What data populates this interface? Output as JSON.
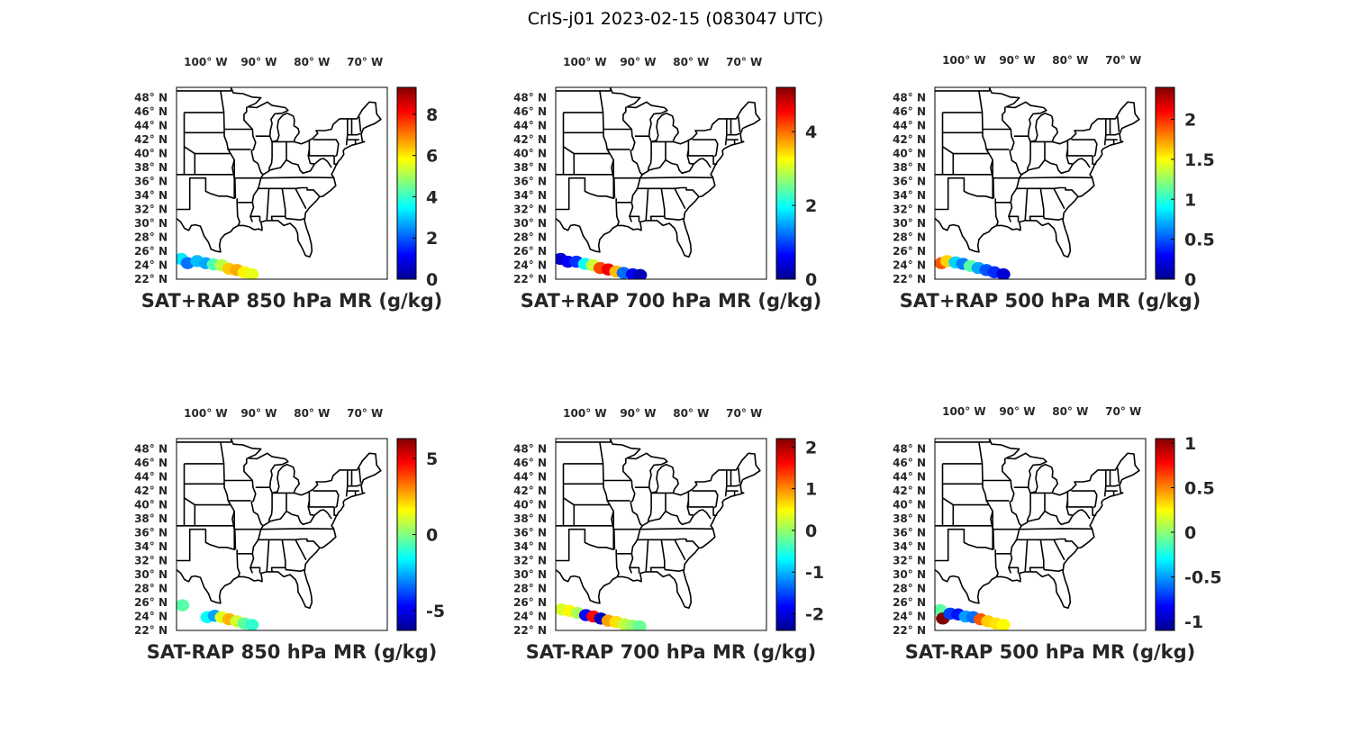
{
  "figure": {
    "title": "CrIS-j01 2023-02-15 (083047 UTC)"
  },
  "map_axes": {
    "lon_ticks": [
      {
        "value": -100,
        "label": "100",
        "suffix": "W"
      },
      {
        "value": -90,
        "label": "90",
        "suffix": "W"
      },
      {
        "value": -80,
        "label": "80",
        "suffix": "W"
      },
      {
        "value": -70,
        "label": "70",
        "suffix": "W"
      }
    ],
    "lat_ticks": [
      {
        "value": 48,
        "label": "48",
        "suffix": "N"
      },
      {
        "value": 46,
        "label": "46",
        "suffix": "N"
      },
      {
        "value": 44,
        "label": "44",
        "suffix": "N"
      },
      {
        "value": 42,
        "label": "42",
        "suffix": "N"
      },
      {
        "value": 40,
        "label": "40",
        "suffix": "N"
      },
      {
        "value": 38,
        "label": "38",
        "suffix": "N"
      },
      {
        "value": 36,
        "label": "36",
        "suffix": "N"
      },
      {
        "value": 34,
        "label": "34",
        "suffix": "N"
      },
      {
        "value": 32,
        "label": "32",
        "suffix": "N"
      },
      {
        "value": 30,
        "label": "30",
        "suffix": "N"
      },
      {
        "value": 28,
        "label": "28",
        "suffix": "N"
      },
      {
        "value": 26,
        "label": "26",
        "suffix": "N"
      },
      {
        "value": 24,
        "label": "24",
        "suffix": "N"
      },
      {
        "value": 22,
        "label": "22",
        "suffix": "N"
      }
    ],
    "degree_symbol": "°",
    "colormap": "jet"
  },
  "panels": [
    {
      "id": "sat-rap-sum-850",
      "title": "SAT+RAP 850 hPa MR (g/kg)",
      "clim": [
        0,
        9.3
      ],
      "cbar_ticks": [
        {
          "value": 0,
          "label": "0"
        },
        {
          "value": 2,
          "label": "2"
        },
        {
          "value": 4,
          "label": "4"
        },
        {
          "value": 6,
          "label": "6"
        },
        {
          "value": 8,
          "label": "8"
        }
      ],
      "swath": [
        {
          "lon": -104.6,
          "lat": 24.9,
          "value": 3.3
        },
        {
          "lon": -103.4,
          "lat": 24.3,
          "value": 2.2
        },
        {
          "lon": -101.6,
          "lat": 24.6,
          "value": 2.9
        },
        {
          "lon": -100.0,
          "lat": 24.3,
          "value": 2.7
        },
        {
          "lon": -98.5,
          "lat": 24.1,
          "value": 4.2
        },
        {
          "lon": -97.0,
          "lat": 24.0,
          "value": 5.2
        },
        {
          "lon": -95.6,
          "lat": 23.5,
          "value": 6.3
        },
        {
          "lon": -94.1,
          "lat": 23.3,
          "value": 6.6
        },
        {
          "lon": -92.7,
          "lat": 23.0,
          "value": 5.9
        },
        {
          "lon": -91.3,
          "lat": 22.7,
          "value": 5.6
        }
      ]
    },
    {
      "id": "sat-rap-sum-700",
      "title": "SAT+RAP 700 hPa MR (g/kg)",
      "clim": [
        0,
        5.2
      ],
      "cbar_ticks": [
        {
          "value": 0,
          "label": "0"
        },
        {
          "value": 2,
          "label": "2"
        },
        {
          "value": 4,
          "label": "4"
        }
      ],
      "swath": [
        {
          "lon": -104.6,
          "lat": 24.9,
          "value": 0.4
        },
        {
          "lon": -103.2,
          "lat": 24.5,
          "value": 0.6
        },
        {
          "lon": -101.6,
          "lat": 24.5,
          "value": 0.9
        },
        {
          "lon": -100.0,
          "lat": 24.2,
          "value": 2.0
        },
        {
          "lon": -98.5,
          "lat": 24.0,
          "value": 3.0
        },
        {
          "lon": -97.1,
          "lat": 23.6,
          "value": 4.2
        },
        {
          "lon": -95.6,
          "lat": 23.4,
          "value": 4.6
        },
        {
          "lon": -94.1,
          "lat": 23.1,
          "value": 3.6
        },
        {
          "lon": -92.7,
          "lat": 22.9,
          "value": 1.2
        },
        {
          "lon": -91.0,
          "lat": 22.7,
          "value": 0.6
        },
        {
          "lon": -89.6,
          "lat": 22.6,
          "value": 0.3
        }
      ]
    },
    {
      "id": "sat-rap-sum-500",
      "title": "SAT+RAP 500 hPa MR (g/kg)",
      "clim": [
        0,
        2.4
      ],
      "cbar_ticks": [
        {
          "value": 0,
          "label": "0"
        },
        {
          "value": 0.5,
          "label": "0.5"
        },
        {
          "value": 1,
          "label": "1"
        },
        {
          "value": 1.5,
          "label": "1.5"
        },
        {
          "value": 2,
          "label": "2"
        }
      ],
      "swath": [
        {
          "lon": -104.3,
          "lat": 24.3,
          "value": 1.9
        },
        {
          "lon": -103.2,
          "lat": 24.6,
          "value": 1.6
        },
        {
          "lon": -101.6,
          "lat": 24.4,
          "value": 0.8
        },
        {
          "lon": -100.2,
          "lat": 24.2,
          "value": 0.6
        },
        {
          "lon": -98.8,
          "lat": 23.9,
          "value": 1.1
        },
        {
          "lon": -97.3,
          "lat": 23.6,
          "value": 0.7
        },
        {
          "lon": -95.8,
          "lat": 23.3,
          "value": 0.5
        },
        {
          "lon": -94.3,
          "lat": 23.0,
          "value": 0.4
        },
        {
          "lon": -92.6,
          "lat": 22.7,
          "value": 0.2
        }
      ]
    },
    {
      "id": "sat-rap-diff-850",
      "title": "SAT-RAP 850 hPa MR (g/kg)",
      "clim": [
        -6.3,
        6.3
      ],
      "cbar_ticks": [
        {
          "value": -5,
          "label": "-5"
        },
        {
          "value": 0,
          "label": "0"
        },
        {
          "value": 5,
          "label": "5"
        }
      ],
      "swath": [
        {
          "lon": -104.4,
          "lat": 25.6,
          "value": -0.5
        },
        {
          "lon": -99.7,
          "lat": 23.9,
          "value": -1.6
        },
        {
          "lon": -98.3,
          "lat": 24.1,
          "value": -2.7
        },
        {
          "lon": -97.0,
          "lat": 23.9,
          "value": 1.2
        },
        {
          "lon": -95.6,
          "lat": 23.6,
          "value": 2.5
        },
        {
          "lon": -94.1,
          "lat": 23.3,
          "value": 1.0
        },
        {
          "lon": -92.7,
          "lat": 23.0,
          "value": -0.4
        },
        {
          "lon": -91.3,
          "lat": 22.8,
          "value": -1.0
        }
      ]
    },
    {
      "id": "sat-rap-diff-700",
      "title": "SAT-RAP 700 hPa MR (g/kg)",
      "clim": [
        -2.4,
        2.2
      ],
      "cbar_ticks": [
        {
          "value": -2,
          "label": "-2"
        },
        {
          "value": -1,
          "label": "-1"
        },
        {
          "value": 0,
          "label": "0"
        },
        {
          "value": 1,
          "label": "1"
        },
        {
          "value": 2,
          "label": "2"
        }
      ],
      "swath": [
        {
          "lon": -104.4,
          "lat": 25.0,
          "value": 0.3
        },
        {
          "lon": -102.9,
          "lat": 24.8,
          "value": 0.5
        },
        {
          "lon": -101.4,
          "lat": 24.5,
          "value": 0.1
        },
        {
          "lon": -99.8,
          "lat": 24.2,
          "value": -1.8
        },
        {
          "lon": -98.4,
          "lat": 24.0,
          "value": 1.6
        },
        {
          "lon": -97.0,
          "lat": 23.7,
          "value": -2.1
        },
        {
          "lon": -95.6,
          "lat": 23.4,
          "value": 0.9
        },
        {
          "lon": -94.1,
          "lat": 23.2,
          "value": 0.6
        },
        {
          "lon": -92.6,
          "lat": 22.9,
          "value": 0.2
        },
        {
          "lon": -91.1,
          "lat": 22.7,
          "value": 0.0
        },
        {
          "lon": -89.7,
          "lat": 22.6,
          "value": -0.2
        }
      ]
    },
    {
      "id": "sat-rap-diff-500",
      "title": "SAT-RAP 500 hPa MR (g/kg)",
      "clim": [
        -1.1,
        1.05
      ],
      "cbar_ticks": [
        {
          "value": -1,
          "label": "-1"
        },
        {
          "value": -0.5,
          "label": "-0.5"
        },
        {
          "value": 0,
          "label": "0"
        },
        {
          "value": 0.5,
          "label": "0.5"
        },
        {
          "value": 1,
          "label": "1"
        }
      ],
      "swath": [
        {
          "lon": -104.5,
          "lat": 24.9,
          "value": -0.1
        },
        {
          "lon": -104.0,
          "lat": 23.7,
          "value": 1.05
        },
        {
          "lon": -102.6,
          "lat": 24.4,
          "value": -0.7
        },
        {
          "lon": -101.1,
          "lat": 24.3,
          "value": -0.8
        },
        {
          "lon": -99.7,
          "lat": 24.0,
          "value": -0.5
        },
        {
          "lon": -98.3,
          "lat": 23.9,
          "value": -0.6
        },
        {
          "lon": -96.9,
          "lat": 23.6,
          "value": 0.6
        },
        {
          "lon": -95.5,
          "lat": 23.3,
          "value": 0.35
        },
        {
          "lon": -94.0,
          "lat": 23.0,
          "value": 0.3
        },
        {
          "lon": -92.6,
          "lat": 22.8,
          "value": 0.25
        }
      ]
    }
  ]
}
